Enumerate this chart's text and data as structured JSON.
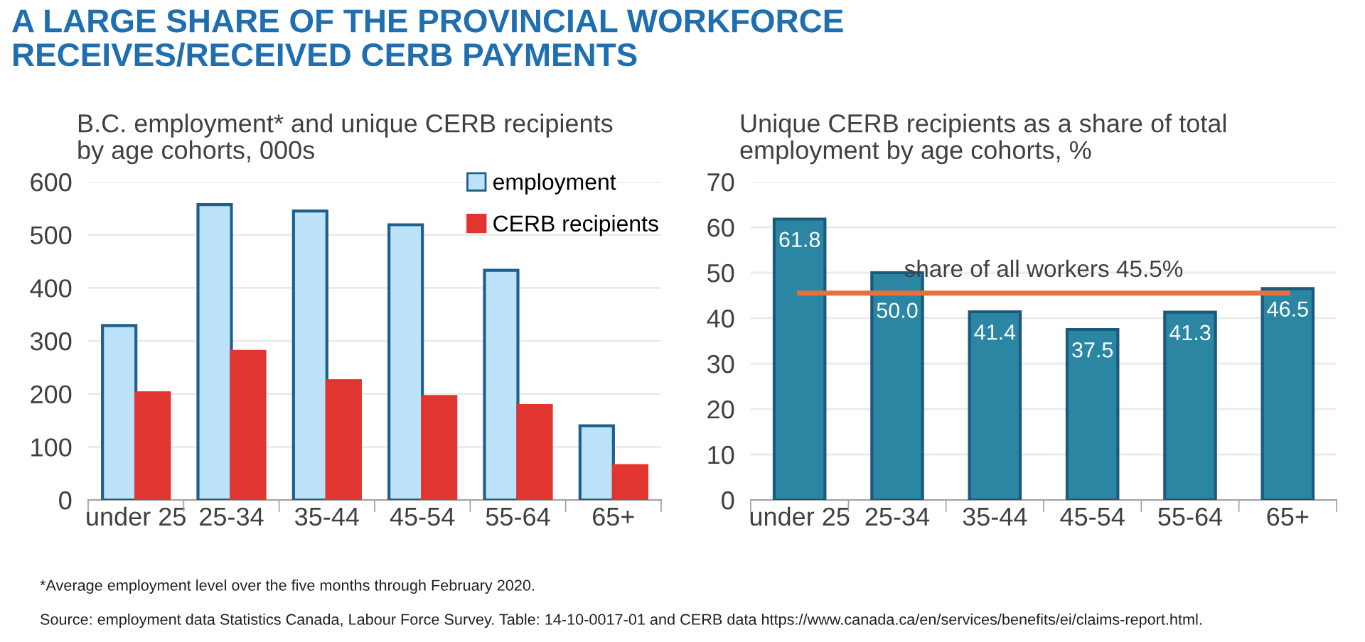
{
  "chart_data": [
    {
      "type": "bar",
      "title": "A LARGE SHARE OF THE PROVINCIAL WORKFORCE\nRECEIVES/RECEIVED CERB PAYMENTS",
      "subtitle": "B.C. employment* and unique CERB recipients\nby age cohorts, 000s",
      "categories": [
        "under 25",
        "25-34",
        "35-44",
        "45-54",
        "55-64",
        "65+"
      ],
      "series": [
        {
          "name": "employment",
          "color": "#bde3fb",
          "values": [
            329,
            557,
            545,
            519,
            433,
            140
          ]
        },
        {
          "name": "CERB recipients",
          "color": "#e03530",
          "values": [
            202,
            280,
            225,
            195,
            178,
            65
          ]
        }
      ],
      "ylim": [
        0,
        600
      ],
      "yticks": [
        0,
        100,
        200,
        300,
        400,
        500,
        600
      ],
      "grid": "y",
      "legend": "top right",
      "annotations": [
        "*Average employment level over the five months through February 2020.",
        "Source: employment data Statistics Canada, Labour Force Survey. Table: 14-10-0017-01 and CERB data https://www.canada.ca/en/services/benefits/ei/claims-report.html."
      ]
    },
    {
      "type": "bar",
      "subtitle": "Unique CERB recipients as a share of total\nemployment by age cohorts, %",
      "categories": [
        "under 25",
        "25-34",
        "35-44",
        "45-54",
        "55-64",
        "65+"
      ],
      "values": [
        61.8,
        50.0,
        41.4,
        37.5,
        41.3,
        46.5
      ],
      "color": "#2a86a3",
      "value_labels": [
        "61.8",
        "50.0",
        "41.4",
        "37.5",
        "41.3",
        "46.5"
      ],
      "ylim": [
        0,
        70
      ],
      "yticks": [
        0,
        10,
        20,
        30,
        40,
        50,
        60,
        70
      ],
      "grid": "y",
      "ref_lines": [
        {
          "axis": "y",
          "value": 45.5,
          "label": "share of all workers 45.5%",
          "color": "#e8703a"
        }
      ]
    }
  ]
}
